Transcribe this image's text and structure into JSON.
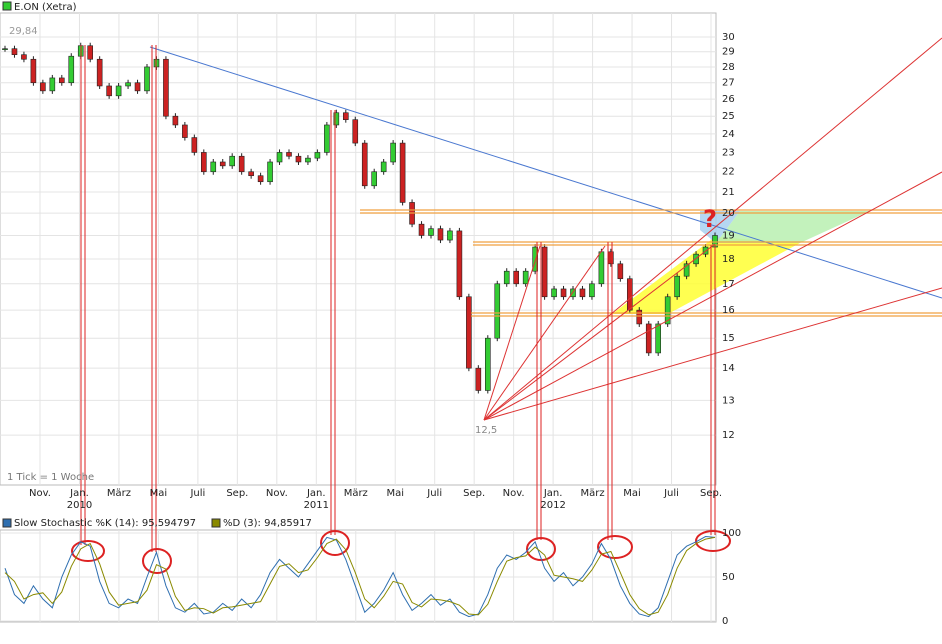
{
  "chart_data": [
    {
      "type": "candlestick",
      "title": "E.ON (Xetra)",
      "log": true,
      "grid": true,
      "color_up": "#33cc33",
      "color_down": "#cc2222",
      "ylim": [
        10.7,
        31.7
      ],
      "yticks": [
        12,
        13,
        14,
        15,
        16,
        17,
        18,
        19,
        20,
        21,
        22,
        23,
        24,
        25,
        26,
        27,
        28,
        29,
        30
      ],
      "x_labels": [
        "Nov.",
        "Jan.",
        "März",
        "Mai",
        "Juli",
        "Sep.",
        "Nov.",
        "Jan.",
        "März",
        "Mai",
        "Juli",
        "Sep.",
        "Nov.",
        "Jan.",
        "März",
        "Mai",
        "Juli",
        "Sep."
      ],
      "years": [
        "2010",
        "2011",
        "2012"
      ],
      "high_label": "29,84",
      "low_label": "12,5",
      "tick_note": "1 Tick = 1 Woche",
      "question": "?",
      "values": [
        29.2,
        28.8,
        28.5,
        27.0,
        26.5,
        27.3,
        27.0,
        28.7,
        29.4,
        28.5,
        26.8,
        26.2,
        26.8,
        27.0,
        26.5,
        28.0,
        28.5,
        25.0,
        24.5,
        23.8,
        23.0,
        22.0,
        22.5,
        22.3,
        22.8,
        22.0,
        21.8,
        21.5,
        22.5,
        23.0,
        22.8,
        22.5,
        22.7,
        23.0,
        24.5,
        25.2,
        24.8,
        23.5,
        21.3,
        22.0,
        22.5,
        23.5,
        20.5,
        19.5,
        19.0,
        19.3,
        18.8,
        19.2,
        16.5,
        14.0,
        13.3,
        15.0,
        17.0,
        17.5,
        17.0,
        17.5,
        18.5,
        16.5,
        16.8,
        16.5,
        16.8,
        16.5,
        17.0,
        18.3,
        17.8,
        17.2,
        16.0,
        15.5,
        14.5,
        15.5,
        16.5,
        17.3,
        17.8,
        18.2,
        18.5,
        19.0
      ]
    },
    {
      "type": "line",
      "ylim": [
        0,
        100
      ],
      "yticks": [
        0,
        50,
        100
      ],
      "series": [
        {
          "name": "Slow Stochastic %K (14): 95,594797",
          "color": "#2f6fb0",
          "values": [
            60,
            30,
            20,
            40,
            25,
            15,
            50,
            75,
            90,
            85,
            45,
            20,
            15,
            25,
            20,
            50,
            78,
            40,
            15,
            10,
            20,
            8,
            10,
            20,
            12,
            25,
            15,
            30,
            55,
            70,
            60,
            50,
            65,
            80,
            95,
            92,
            70,
            40,
            10,
            20,
            35,
            55,
            30,
            12,
            20,
            30,
            18,
            25,
            10,
            5,
            8,
            30,
            60,
            75,
            70,
            78,
            90,
            60,
            45,
            55,
            40,
            50,
            65,
            88,
            70,
            40,
            20,
            8,
            5,
            15,
            45,
            75,
            85,
            90,
            96,
            95
          ]
        },
        {
          "name": "%D (3): 94,85917",
          "color": "#8a8a00",
          "values": [
            55,
            45,
            25,
            30,
            32,
            20,
            33,
            62,
            82,
            88,
            65,
            33,
            18,
            20,
            22,
            35,
            64,
            59,
            28,
            12,
            15,
            14,
            9,
            15,
            16,
            18,
            20,
            22,
            42,
            62,
            65,
            55,
            58,
            72,
            88,
            93,
            81,
            55,
            25,
            15,
            28,
            45,
            42,
            21,
            16,
            25,
            24,
            22,
            18,
            8,
            7,
            19,
            45,
            68,
            72,
            74,
            84,
            75,
            52,
            50,
            48,
            45,
            58,
            76,
            79,
            55,
            30,
            14,
            7,
            10,
            30,
            60,
            80,
            88,
            93,
            95
          ]
        }
      ]
    }
  ]
}
